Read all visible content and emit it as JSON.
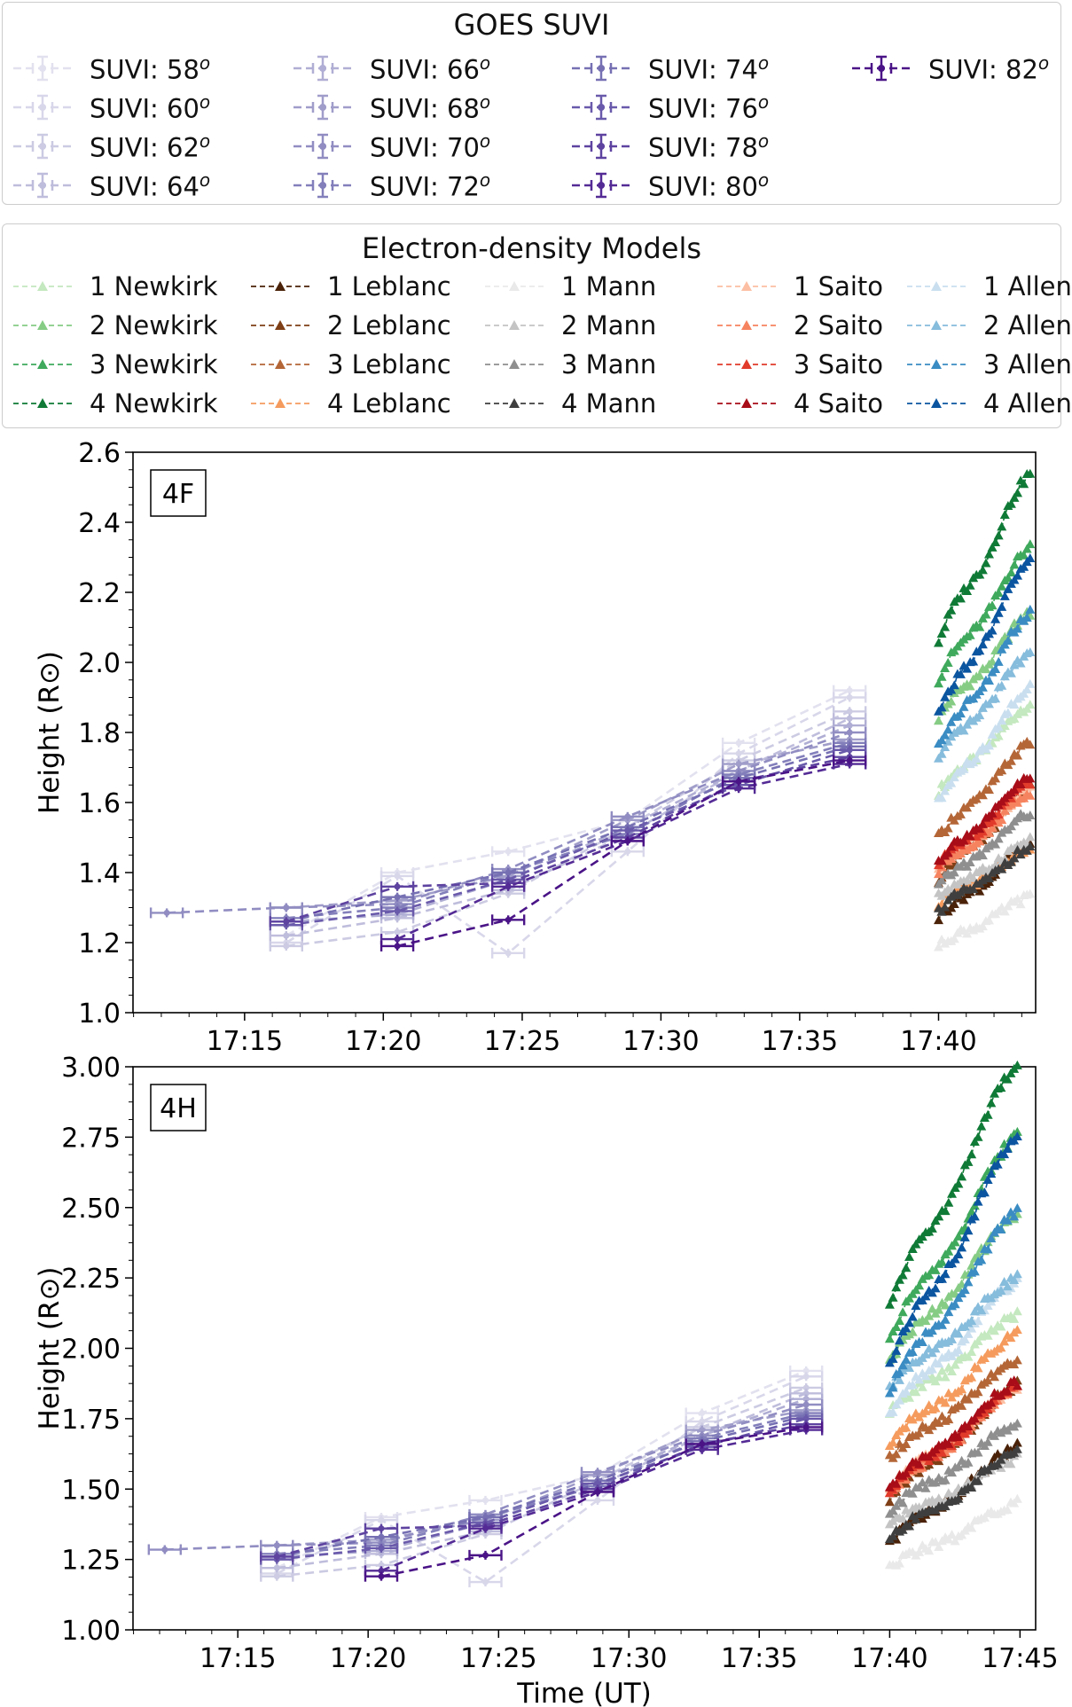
{
  "suvi_legend": {
    "title": "GOES SUVI",
    "items": [
      {
        "label": "SUVI: 58",
        "sup": "o",
        "color": "#e2e1ef"
      },
      {
        "label": "SUVI: 60",
        "sup": "o",
        "color": "#d8d7ea"
      },
      {
        "label": "SUVI: 62",
        "sup": "o",
        "color": "#cccbe3"
      },
      {
        "label": "SUVI: 64",
        "sup": "o",
        "color": "#bfbddc"
      },
      {
        "label": "SUVI: 66",
        "sup": "o",
        "color": "#b0aed4"
      },
      {
        "label": "SUVI: 68",
        "sup": "o",
        "color": "#a09dca"
      },
      {
        "label": "SUVI: 70",
        "sup": "o",
        "color": "#918dc2"
      },
      {
        "label": "SUVI: 72",
        "sup": "o",
        "color": "#837fbb"
      },
      {
        "label": "SUVI: 74",
        "sup": "o",
        "color": "#7670b3"
      },
      {
        "label": "SUVI: 76",
        "sup": "o",
        "color": "#6a5aab"
      },
      {
        "label": "SUVI: 78",
        "sup": "o",
        "color": "#5e43a0"
      },
      {
        "label": "SUVI: 80",
        "sup": "o",
        "color": "#542b95"
      },
      {
        "label": "SUVI: 82",
        "sup": "o",
        "color": "#4a1487"
      }
    ]
  },
  "model_legend": {
    "title": "Electron-density Models",
    "items": [
      {
        "label": "1 Newkirk",
        "color": "#c4e8bf"
      },
      {
        "label": "2 Newkirk",
        "color": "#86cc85"
      },
      {
        "label": "3 Newkirk",
        "color": "#3fa95c"
      },
      {
        "label": "4 Newkirk",
        "color": "#0f7a36"
      },
      {
        "label": "1 Leblanc",
        "color": "#4a2208"
      },
      {
        "label": "2 Leblanc",
        "color": "#7f3f16"
      },
      {
        "label": "3 Leblanc",
        "color": "#b46637"
      },
      {
        "label": "4 Leblanc",
        "color": "#f59b5e"
      },
      {
        "label": "1 Mann",
        "color": "#e9e9e9"
      },
      {
        "label": "2 Mann",
        "color": "#c4c4c4"
      },
      {
        "label": "3 Mann",
        "color": "#8f8f8f"
      },
      {
        "label": "4 Mann",
        "color": "#3f3f3f"
      },
      {
        "label": "1 Saito",
        "color": "#fcbfa3"
      },
      {
        "label": "2 Saito",
        "color": "#f6835f"
      },
      {
        "label": "3 Saito",
        "color": "#e13b2b"
      },
      {
        "label": "4 Saito",
        "color": "#a80d18"
      },
      {
        "label": "1 Allen",
        "color": "#c9dfef"
      },
      {
        "label": "2 Allen",
        "color": "#86bcdc"
      },
      {
        "label": "3 Allen",
        "color": "#3a8cc3"
      },
      {
        "label": "4 Allen",
        "color": "#0b55a0"
      }
    ]
  },
  "chart_data": [
    {
      "type": "line",
      "panel_label": "4F",
      "ylabel": "Height (R⊙)",
      "xlabel": "",
      "xlim": [
        17.183,
        17.725
      ],
      "ylim": [
        1.0,
        2.6
      ],
      "yticks": [
        "1.0",
        "1.2",
        "1.4",
        "1.6",
        "1.8",
        "2.0",
        "2.2",
        "2.4",
        "2.6"
      ],
      "ytick_values": [
        1.0,
        1.2,
        1.4,
        1.6,
        1.8,
        2.0,
        2.2,
        2.4,
        2.6
      ],
      "xticks": [
        "17:15",
        "17:20",
        "17:25",
        "17:30",
        "17:35",
        "17:40"
      ],
      "xtick_values": [
        17.25,
        17.3333,
        17.4167,
        17.5,
        17.5833,
        17.6667
      ],
      "model_time_range": [
        "17:40",
        "17:43"
      ],
      "models": [
        {
          "name": "1 Newkirk",
          "start": 1.63,
          "end": 1.88
        },
        {
          "name": "2 Newkirk",
          "start": 1.84,
          "end": 2.14
        },
        {
          "name": "3 Newkirk",
          "start": 1.95,
          "end": 2.33
        },
        {
          "name": "4 Newkirk",
          "start": 2.06,
          "end": 2.54
        },
        {
          "name": "1 Leblanc",
          "start": 1.27,
          "end": 1.48
        },
        {
          "name": "2 Leblanc",
          "start": 1.38,
          "end": 1.64
        },
        {
          "name": "3 Leblanc",
          "start": 1.5,
          "end": 1.77
        },
        {
          "name": "4 Leblanc",
          "start": 1.31,
          "end": 1.47
        },
        {
          "name": "1 Mann",
          "start": 1.19,
          "end": 1.33
        },
        {
          "name": "2 Mann",
          "start": 1.33,
          "end": 1.49
        },
        {
          "name": "3 Mann",
          "start": 1.36,
          "end": 1.57
        },
        {
          "name": "4 Mann",
          "start": 1.29,
          "end": 1.47
        },
        {
          "name": "1 Saito",
          "start": 1.41,
          "end": 1.64
        },
        {
          "name": "2 Saito",
          "start": 1.4,
          "end": 1.63
        },
        {
          "name": "3 Saito",
          "start": 1.42,
          "end": 1.66
        },
        {
          "name": "4 Saito",
          "start": 1.43,
          "end": 1.67
        },
        {
          "name": "1 Allen",
          "start": 1.6,
          "end": 1.93
        },
        {
          "name": "2 Allen",
          "start": 1.72,
          "end": 2.03
        },
        {
          "name": "3 Allen",
          "start": 1.76,
          "end": 2.14
        },
        {
          "name": "4 Allen",
          "start": 1.85,
          "end": 2.29
        }
      ]
    },
    {
      "type": "line",
      "panel_label": "4H",
      "ylabel": "Height (R⊙)",
      "xlabel": "Time (UT)",
      "xlim": [
        17.183,
        17.76
      ],
      "ylim": [
        1.0,
        3.0
      ],
      "yticks": [
        "1.00",
        "1.25",
        "1.50",
        "1.75",
        "2.00",
        "2.25",
        "2.50",
        "2.75",
        "3.00"
      ],
      "ytick_values": [
        1.0,
        1.25,
        1.5,
        1.75,
        2.0,
        2.25,
        2.5,
        2.75,
        3.0
      ],
      "xticks": [
        "17:15",
        "17:20",
        "17:25",
        "17:30",
        "17:35",
        "17:40",
        "17:45"
      ],
      "xtick_values": [
        17.25,
        17.3333,
        17.4167,
        17.5,
        17.5833,
        17.6667,
        17.75
      ],
      "model_time_range": [
        "17:40",
        "17:45"
      ],
      "models": [
        {
          "name": "1 Newkirk",
          "start": 1.77,
          "end": 2.12
        },
        {
          "name": "2 Newkirk",
          "start": 1.95,
          "end": 2.48
        },
        {
          "name": "3 Newkirk",
          "start": 2.03,
          "end": 2.76
        },
        {
          "name": "4 Newkirk",
          "start": 2.15,
          "end": 3.01
        },
        {
          "name": "1 Leblanc",
          "start": 1.31,
          "end": 1.65
        },
        {
          "name": "2 Leblanc",
          "start": 1.46,
          "end": 1.87
        },
        {
          "name": "3 Leblanc",
          "start": 1.61,
          "end": 1.96
        },
        {
          "name": "4 Leblanc",
          "start": 1.66,
          "end": 2.05
        },
        {
          "name": "1 Mann",
          "start": 1.22,
          "end": 1.45
        },
        {
          "name": "2 Mann",
          "start": 1.37,
          "end": 1.61
        },
        {
          "name": "3 Mann",
          "start": 1.42,
          "end": 1.73
        },
        {
          "name": "4 Mann",
          "start": 1.32,
          "end": 1.63
        },
        {
          "name": "1 Saito",
          "start": 1.5,
          "end": 1.86
        },
        {
          "name": "2 Saito",
          "start": 1.48,
          "end": 1.86
        },
        {
          "name": "3 Saito",
          "start": 1.49,
          "end": 1.87
        },
        {
          "name": "4 Saito",
          "start": 1.5,
          "end": 1.88
        },
        {
          "name": "1 Allen",
          "start": 1.77,
          "end": 2.24
        },
        {
          "name": "2 Allen",
          "start": 1.86,
          "end": 2.25
        },
        {
          "name": "3 Allen",
          "start": 1.85,
          "end": 2.49
        },
        {
          "name": "4 Allen",
          "start": 1.94,
          "end": 2.75
        }
      ]
    }
  ],
  "suvi_data": {
    "time_labels": [
      "17:12",
      "17:16.5",
      "17:20.5",
      "17:24.5",
      "17:28.8",
      "17:32.8",
      "17:36.8"
    ],
    "times": [
      17.2033,
      17.275,
      17.3417,
      17.4083,
      17.48,
      17.5467,
      17.6133
    ],
    "series": [
      {
        "name": "SUVI: 58",
        "values": [
          null,
          1.22,
          1.4,
          1.46,
          1.55,
          1.77,
          1.92
        ]
      },
      {
        "name": "SUVI: 60",
        "values": [
          null,
          1.2,
          1.39,
          1.17,
          1.46,
          1.74,
          1.9
        ]
      },
      {
        "name": "SUVI: 62",
        "values": [
          null,
          1.19,
          1.23,
          1.34,
          1.53,
          1.72,
          1.86
        ]
      },
      {
        "name": "SUVI: 64",
        "values": [
          null,
          1.22,
          1.27,
          1.35,
          1.51,
          1.69,
          1.84
        ]
      },
      {
        "name": "SUVI: 66",
        "values": [
          null,
          1.26,
          1.28,
          1.38,
          1.53,
          1.69,
          1.82
        ]
      },
      {
        "name": "SUVI: 68",
        "values": [
          null,
          1.3,
          1.32,
          1.39,
          1.55,
          1.71,
          1.78
        ]
      },
      {
        "name": "SUVI: 70",
        "values": [
          1.285,
          1.3,
          1.31,
          1.41,
          1.56,
          1.69,
          1.8
        ]
      },
      {
        "name": "SUVI: 72",
        "values": [
          null,
          1.27,
          1.3,
          1.4,
          1.51,
          1.68,
          1.77
        ]
      },
      {
        "name": "SUVI: 74",
        "values": [
          null,
          1.26,
          1.33,
          1.4,
          1.53,
          1.67,
          1.76
        ]
      },
      {
        "name": "SUVI: 76",
        "values": [
          null,
          1.25,
          1.29,
          1.38,
          1.52,
          1.65,
          1.75
        ]
      },
      {
        "name": "SUVI: 78",
        "values": [
          null,
          1.26,
          1.36,
          1.37,
          1.5,
          1.66,
          1.73
        ]
      },
      {
        "name": "SUVI: 80",
        "values": [
          null,
          null,
          1.21,
          1.36,
          1.49,
          1.64,
          1.71
        ]
      },
      {
        "name": "SUVI: 82",
        "values": [
          null,
          null,
          1.19,
          1.265,
          1.49,
          1.66,
          1.72
        ]
      }
    ]
  }
}
